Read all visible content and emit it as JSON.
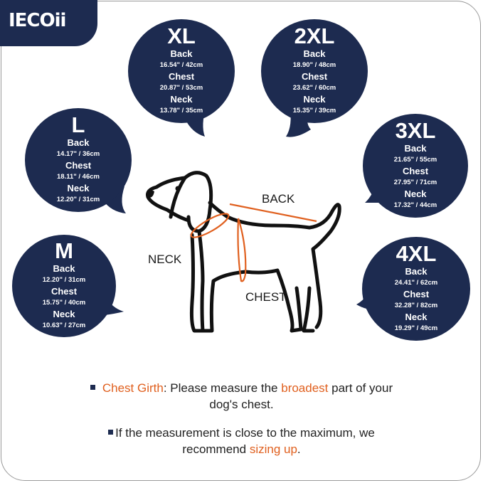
{
  "brand": "IECOii",
  "colors": {
    "navy": "#1d2b50",
    "accent": "#e0601f"
  },
  "sizes": [
    {
      "size": "XL",
      "back_label": "Back",
      "back": "16.54\" / 42cm",
      "chest_label": "Chest",
      "chest": "20.87\" / 53cm",
      "neck_label": "Neck",
      "neck": "13.78\" / 35cm"
    },
    {
      "size": "2XL",
      "back_label": "Back",
      "back": "18.90\" / 48cm",
      "chest_label": "Chest",
      "chest": "23.62\" / 60cm",
      "neck_label": "Neck",
      "neck": "15.35\" / 39cm"
    },
    {
      "size": "L",
      "back_label": "Back",
      "back": "14.17\" / 36cm",
      "chest_label": "Chest",
      "chest": "18.11\" / 46cm",
      "neck_label": "Neck",
      "neck": "12.20\" / 31cm"
    },
    {
      "size": "3XL",
      "back_label": "Back",
      "back": "21.65\" / 55cm",
      "chest_label": "Chest",
      "chest": "27.95\" / 71cm",
      "neck_label": "Neck",
      "neck": "17.32\" / 44cm"
    },
    {
      "size": "M",
      "back_label": "Back",
      "back": "12.20\" / 31cm",
      "chest_label": "Chest",
      "chest": "15.75\" / 40cm",
      "neck_label": "Neck",
      "neck": "10.63\" / 27cm"
    },
    {
      "size": "4XL",
      "back_label": "Back",
      "back": "24.41\" / 62cm",
      "chest_label": "Chest",
      "chest": "32.28\" / 82cm",
      "neck_label": "Neck",
      "neck": "19.29\" / 49cm"
    }
  ],
  "diagram": {
    "back": "BACK",
    "neck": "NECK",
    "chest": "CHEST"
  },
  "notes": {
    "n1_term": "Chest Girth",
    "n1_a": ": Please measure the ",
    "n1_hl": "broadest",
    "n1_b": " part of your",
    "n1_c": "dog's chest.",
    "n2_a": "If the measurement is close to the maximum, we",
    "n2_b": "recommend ",
    "n2_hl": "sizing up",
    "n2_c": "."
  }
}
